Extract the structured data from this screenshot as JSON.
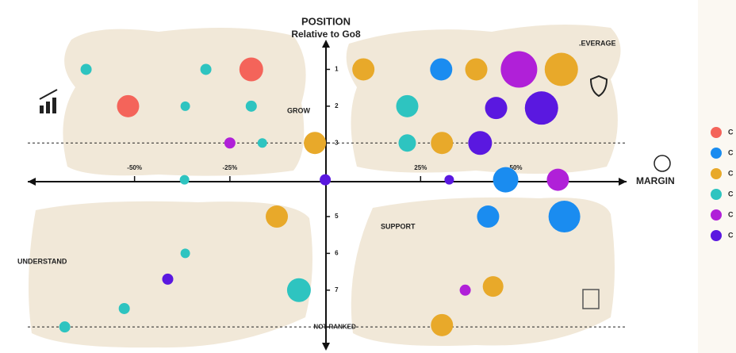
{
  "chart_data": {
    "type": "bubble",
    "title": "POSITION",
    "subtitle": "Relative to Go8",
    "x_label": "MARGIN",
    "quadrant_labels": [
      "GROW",
      ".EVERAGE",
      "SUPPORT",
      "UNDERSTAND"
    ],
    "xlim": [
      -78,
      79
    ],
    "ylim": [
      0.3,
      8.6
    ],
    "y_inverted": true,
    "xticks": [
      {
        "value": -50,
        "label": "-50%"
      },
      {
        "value": -25,
        "label": "-25%"
      },
      {
        "value": 25,
        "label": "25%"
      },
      {
        "value": 50,
        "label": "50%"
      }
    ],
    "yticks": [
      1,
      2,
      3,
      5,
      6,
      7,
      {
        "value": 8,
        "label": "NOT RANKED"
      }
    ],
    "hlines": [
      3,
      8
    ],
    "series": [
      {
        "name": "C",
        "color": "#f4645a",
        "x": [
          -19.4,
          -51.7
        ],
        "y": [
          1,
          2
        ],
        "sizes": [
          15,
          14
        ]
      },
      {
        "name": "C",
        "color": "#1a8cf0",
        "x": [
          30.4,
          47.3,
          42.7,
          62.7
        ],
        "y": [
          1,
          4,
          5,
          5
        ],
        "sizes": [
          14,
          16,
          14,
          20
        ]
      },
      {
        "name": "C",
        "color": "#e8a92a",
        "x": [
          10,
          39.6,
          61.9,
          -2.7,
          30.6,
          -12.7,
          44,
          30.6
        ],
        "y": [
          1,
          1,
          1,
          3,
          3,
          5,
          6.9,
          7.95
        ],
        "sizes": [
          14,
          14,
          21,
          14,
          14,
          14,
          13,
          14
        ]
      },
      {
        "name": "C",
        "color": "#2ec4c0",
        "x": [
          -62.7,
          -31.3,
          -36.7,
          -19.4,
          21.5,
          -16.5,
          21.5,
          -36.9,
          -36.7,
          -6.9,
          -52.7,
          -68.3
        ],
        "y": [
          1,
          1,
          2,
          2,
          2,
          3,
          3,
          4,
          6,
          7,
          7.5,
          8
        ],
        "sizes": [
          7,
          7,
          6,
          7,
          14,
          6,
          11,
          6,
          6,
          15,
          7,
          7
        ]
      },
      {
        "name": "C",
        "color": "#b020d8",
        "x": [
          50.8,
          -25,
          61,
          36.7
        ],
        "y": [
          1,
          3,
          4,
          7
        ],
        "sizes": [
          23,
          7,
          14,
          7
        ]
      },
      {
        "name": "C",
        "color": "#5a18e0",
        "x": [
          44.8,
          56.7,
          40.6,
          0,
          32.5,
          -41.3
        ],
        "y": [
          2.05,
          2.05,
          3,
          4,
          4,
          6.7
        ],
        "sizes": [
          14,
          21,
          15,
          7,
          6,
          7
        ]
      }
    ]
  }
}
